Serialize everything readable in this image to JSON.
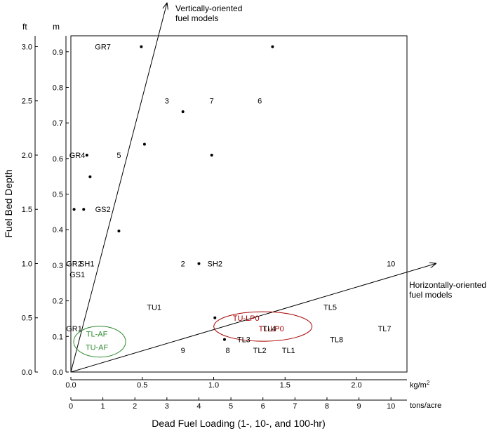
{
  "chart_data": {
    "type": "scatter",
    "xlabel": "Dead Fuel Loading (1-, 10-, and 100-hr)",
    "ylabel": "Fuel Bed Depth",
    "x_unit_metric": "kg/m²",
    "x_unit_imperial": "tons/acre",
    "y_unit_imperial": "ft",
    "y_unit_metric": "m",
    "xlim": [
      0,
      10.5
    ],
    "ylim": [
      0,
      3.1
    ],
    "x_ticks_imperial": [
      "0",
      "1",
      "2",
      "3",
      "4",
      "5",
      "6",
      "7",
      "8",
      "9",
      "10"
    ],
    "x_ticks_metric": [
      "0.0",
      "0.5",
      "1.0",
      "1.5",
      "2.0"
    ],
    "y_ticks_imperial": [
      "0.0",
      "0.5",
      "1.0",
      "1.5",
      "2.0",
      "2.5",
      "3.0"
    ],
    "y_ticks_metric": [
      "0.0",
      "0.1",
      "0.2",
      "0.3",
      "0.4",
      "0.5",
      "0.6",
      "0.7",
      "0.8",
      "0.9"
    ],
    "points": [
      {
        "x": 2.2,
        "y": 3.0
      },
      {
        "x": 6.3,
        "y": 3.0
      },
      {
        "x": 3.5,
        "y": 2.4
      },
      {
        "x": 2.3,
        "y": 2.1
      },
      {
        "x": 0.5,
        "y": 2.0
      },
      {
        "x": 4.4,
        "y": 2.0
      },
      {
        "x": 0.6,
        "y": 1.8
      },
      {
        "x": 0.1,
        "y": 1.5
      },
      {
        "x": 0.4,
        "y": 1.5
      },
      {
        "x": 1.5,
        "y": 1.3
      },
      {
        "x": 4.0,
        "y": 1.0
      },
      {
        "x": 4.5,
        "y": 0.5
      },
      {
        "x": 4.8,
        "y": 0.3
      }
    ],
    "point_labels": [
      {
        "text": "GR7",
        "x": 1.0,
        "y": 3.0
      },
      {
        "text": "3",
        "x": 3.0,
        "y": 2.5
      },
      {
        "text": "7",
        "x": 4.4,
        "y": 2.5
      },
      {
        "text": "6",
        "x": 5.9,
        "y": 2.5
      },
      {
        "text": "GR4",
        "x": 0.2,
        "y": 2.0
      },
      {
        "text": "5",
        "x": 1.5,
        "y": 2.0
      },
      {
        "text": "GS2",
        "x": 1.0,
        "y": 1.5
      },
      {
        "text": "GR2",
        "x": 0.1,
        "y": 1.0
      },
      {
        "text": "SH1",
        "x": 0.5,
        "y": 1.0
      },
      {
        "text": "GS1",
        "x": 0.2,
        "y": 0.9
      },
      {
        "text": "2",
        "x": 3.5,
        "y": 1.0
      },
      {
        "text": "SH2",
        "x": 4.5,
        "y": 1.0
      },
      {
        "text": "10",
        "x": 10.0,
        "y": 1.0
      },
      {
        "text": "TU1",
        "x": 2.6,
        "y": 0.6
      },
      {
        "text": "TL5",
        "x": 8.1,
        "y": 0.6
      },
      {
        "text": "GR1",
        "x": 0.1,
        "y": 0.4
      },
      {
        "text": "TL4",
        "x": 6.2,
        "y": 0.4
      },
      {
        "text": "TL7",
        "x": 9.8,
        "y": 0.4
      },
      {
        "text": "TL3",
        "x": 5.4,
        "y": 0.3
      },
      {
        "text": "TL8",
        "x": 8.3,
        "y": 0.3
      },
      {
        "text": "9",
        "x": 3.5,
        "y": 0.2
      },
      {
        "text": "8",
        "x": 4.9,
        "y": 0.2
      },
      {
        "text": "TL2",
        "x": 5.9,
        "y": 0.2
      },
      {
        "text": "TL1",
        "x": 6.8,
        "y": 0.2
      }
    ],
    "groups": [
      {
        "labels": [
          "TL-AF",
          "TU-AF"
        ],
        "color": "#2e8b2e",
        "x": 0.9,
        "y": 0.28
      },
      {
        "labels": [
          "TU-LP0",
          "TL-LP0"
        ],
        "color": "#aa0000",
        "x": 6.0,
        "y": 0.42
      }
    ],
    "annotations": [
      {
        "text": "Vertically-oriented fuel models",
        "lines": [
          "Vertically-oriented",
          "fuel models"
        ]
      },
      {
        "text": "Horizontally-oriented fuel models",
        "lines": [
          "Horizontally-oriented",
          "fuel models"
        ]
      }
    ],
    "arrows": [
      {
        "name": "vertical-arrow",
        "from": [
          0,
          0
        ],
        "to": [
          3.0,
          3.4
        ]
      },
      {
        "name": "horizontal-arrow",
        "from": [
          0,
          0
        ],
        "to": [
          11.4,
          1.0
        ]
      }
    ],
    "grid": false,
    "legend": "none"
  }
}
